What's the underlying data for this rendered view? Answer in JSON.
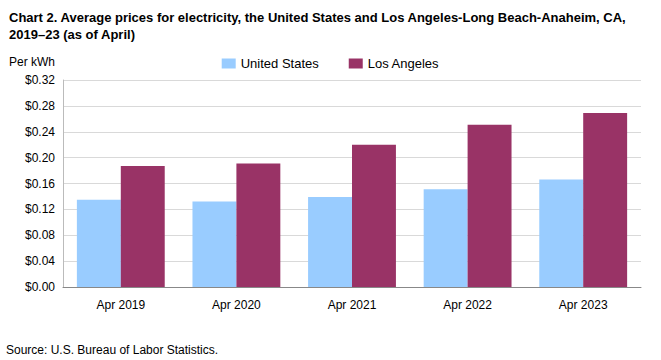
{
  "chart_data": {
    "type": "bar",
    "title": "Chart 2. Average prices for electricity, the United States and Los Angeles-Long Beach-Anaheim, CA, 2019–23 (as of April)",
    "ylabel": "Per kWh",
    "categories": [
      "Apr 2019",
      "Apr 2020",
      "Apr 2021",
      "Apr 2022",
      "Apr 2023"
    ],
    "series": [
      {
        "name": "United States",
        "color": "#99ccff",
        "values": [
          0.135,
          0.132,
          0.139,
          0.151,
          0.166
        ]
      },
      {
        "name": "Los Angeles",
        "color": "#993366",
        "values": [
          0.187,
          0.191,
          0.22,
          0.251,
          0.269
        ]
      }
    ],
    "ylim": [
      0,
      0.32
    ],
    "yticks": [
      {
        "value": 0,
        "label": "$0.00"
      },
      {
        "value": 0.04,
        "label": "$0.04"
      },
      {
        "value": 0.08,
        "label": "$0.08"
      },
      {
        "value": 0.12,
        "label": "$0.12"
      },
      {
        "value": 0.16,
        "label": "$0.16"
      },
      {
        "value": 0.2,
        "label": "$0.20"
      },
      {
        "value": 0.24,
        "label": "$0.24"
      },
      {
        "value": 0.28,
        "label": "$0.28"
      },
      {
        "value": 0.32,
        "label": "$0.32"
      }
    ],
    "grid": true,
    "legend": "top",
    "annotations": [
      "Source: U.S. Bureau of Labor Statistics."
    ]
  }
}
